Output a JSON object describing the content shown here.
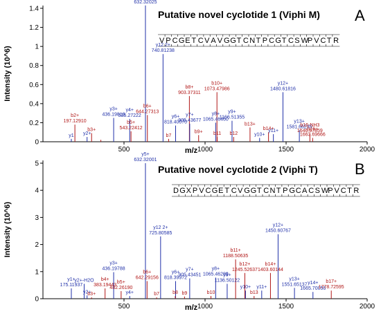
{
  "chart_data": [
    {
      "type": "bar",
      "panel_letter": "A",
      "title": "Putative novel cyclotide 1 (Viphi M)",
      "xlabel": "m/z",
      "ylabel": "Intensity (10^6)",
      "xlim": [
        0,
        2000
      ],
      "ylim": [
        0,
        1.4
      ],
      "xticks": [
        "500",
        "1000",
        "1500",
        "2000"
      ],
      "yticks": [
        "0",
        "0.2",
        "0.4",
        "0.6",
        "0.8",
        "1",
        "1.2",
        "1.4"
      ],
      "sequence": [
        "V",
        "P",
        "C",
        "G",
        "E",
        "T",
        "C",
        "V",
        "A",
        "V",
        "G",
        "G",
        "T",
        "C",
        "N",
        "T",
        "P",
        "C",
        "G",
        "T",
        "C",
        "S",
        "W",
        "P",
        "V",
        "C",
        "T",
        "R"
      ],
      "peaks": [
        {
          "ion": "y1",
          "mz": "",
          "x": 175.1,
          "y": 0.03,
          "series": "y",
          "show_label": true
        },
        {
          "ion": "b2+",
          "mz": "197.12910",
          "x": 197.1,
          "y": 0.18,
          "series": "b",
          "show_label": true
        },
        {
          "ion": "y2+",
          "mz": "",
          "x": 272.2,
          "y": 0.05,
          "series": "y",
          "show_label": true
        },
        {
          "ion": "b3+",
          "mz": "",
          "x": 300.1,
          "y": 0.09,
          "series": "b",
          "show_label": true
        },
        {
          "ion": "y3+",
          "mz": "436.19818",
          "x": 436.2,
          "y": 0.25,
          "series": "y",
          "show_label": true
        },
        {
          "ion": "b4+",
          "mz": "",
          "x": 357.2,
          "y": 0.02,
          "series": "b",
          "show_label": false
        },
        {
          "ion": "y4+",
          "mz": "535.27222",
          "x": 535.3,
          "y": 0.24,
          "series": "y",
          "show_label": true
        },
        {
          "ion": "b5+",
          "mz": "543.22412",
          "x": 543.2,
          "y": 0.11,
          "series": "b",
          "show_label": true
        },
        {
          "ion": "y5+",
          "mz": "632.32025",
          "x": 632.3,
          "y": 1.43,
          "series": "y",
          "show_label": true
        },
        {
          "ion": "b6+",
          "mz": "644.27313",
          "x": 644.3,
          "y": 0.28,
          "series": "b",
          "show_label": true
        },
        {
          "ion": "y12 2+",
          "mz": "740.81238",
          "x": 740.8,
          "y": 0.92,
          "series": "y",
          "show_label": true
        },
        {
          "ion": "y6+",
          "mz": "818.40070",
          "x": 818.4,
          "y": 0.17,
          "series": "y",
          "show_label": true
        },
        {
          "ion": "b7",
          "mz": "",
          "x": 775.3,
          "y": 0.03,
          "series": "b",
          "show_label": true
        },
        {
          "ion": "b8+",
          "mz": "903.37311",
          "x": 903.4,
          "y": 0.48,
          "series": "b",
          "show_label": true
        },
        {
          "ion": "y7+",
          "mz": "905.43677",
          "x": 905.4,
          "y": 0.19,
          "series": "y",
          "show_label": true
        },
        {
          "ion": "b9+",
          "mz": "",
          "x": 960.4,
          "y": 0.07,
          "series": "b",
          "show_label": true
        },
        {
          "ion": "b10+",
          "mz": "1073.47986",
          "x": 1073.5,
          "y": 0.52,
          "series": "b",
          "show_label": true
        },
        {
          "ion": "y8+",
          "mz": "1065.46460",
          "x": 1065.5,
          "y": 0.2,
          "series": "y",
          "show_label": true
        },
        {
          "ion": "b11",
          "mz": "",
          "x": 1075.1,
          "y": 0.05,
          "series": "b",
          "show_label": true
        },
        {
          "ion": "y9+",
          "mz": "1166.51355",
          "x": 1166.5,
          "y": 0.22,
          "series": "y",
          "show_label": true
        },
        {
          "ion": "b12",
          "mz": "",
          "x": 1176.5,
          "y": 0.05,
          "series": "b",
          "show_label": true
        },
        {
          "ion": "b13+",
          "mz": "",
          "x": 1277.5,
          "y": 0.15,
          "series": "b",
          "show_label": true
        },
        {
          "ion": "y10+",
          "mz": "",
          "x": 1336.6,
          "y": 0.04,
          "series": "y",
          "show_label": true
        },
        {
          "ion": "b14+",
          "mz": "",
          "x": 1391.6,
          "y": 0.1,
          "series": "b",
          "show_label": true
        },
        {
          "ion": "y11+",
          "mz": "",
          "x": 1421.6,
          "y": 0.08,
          "series": "y",
          "show_label": true
        },
        {
          "ion": "y12+",
          "mz": "1480.61816",
          "x": 1480.6,
          "y": 0.52,
          "series": "y",
          "show_label": true
        },
        {
          "ion": "y13+",
          "mz": "1581.66235",
          "x": 1581.7,
          "y": 0.12,
          "series": "y",
          "show_label": true
        },
        {
          "ion": "b16-NH3",
          "mz": "1646.67859",
          "x": 1646.7,
          "y": 0.08,
          "series": "b",
          "show_label": true
        },
        {
          "ion": "b16+",
          "mz": "1663.69666",
          "x": 1663.7,
          "y": 0.04,
          "series": "b",
          "show_label": true
        }
      ]
    },
    {
      "type": "bar",
      "panel_letter": "B",
      "title": "Putative novel cyclotide 2 (Viphi T)",
      "xlabel": "m/z",
      "ylabel": "Intensity (10^6)",
      "xlim": [
        0,
        2000
      ],
      "ylim": [
        0,
        5
      ],
      "xticks": [
        "500",
        "1000",
        "1500",
        "2000"
      ],
      "yticks": [
        "0",
        "1",
        "2",
        "3",
        "4",
        "5"
      ],
      "sequence": [
        "D",
        "G",
        "X",
        "P",
        "V",
        "C",
        "G",
        "E",
        "T",
        "C",
        "V",
        "G",
        "G",
        "T",
        "C",
        "N",
        "T",
        "P",
        "G",
        "C",
        "A",
        "C",
        "S",
        "W",
        "P",
        "V",
        "C",
        "T",
        "R"
      ],
      "peaks": [
        {
          "ion": "y1+",
          "mz": "175.11937",
          "x": 175.1,
          "y": 0.38,
          "series": "y",
          "show_label": true
        },
        {
          "ion": "y2+",
          "mz": "",
          "x": 272.2,
          "y": 0.12,
          "series": "y",
          "show_label": true
        },
        {
          "ion": "b3+",
          "mz": "",
          "x": 300.1,
          "y": 0.05,
          "series": "b",
          "show_label": true
        },
        {
          "ion": "y2+-H2O",
          "mz": "",
          "x": 254.2,
          "y": 0.55,
          "series": "y",
          "show_label": true
        },
        {
          "ion": "b4+",
          "mz": "383.19443",
          "x": 383.2,
          "y": 0.38,
          "series": "b",
          "show_label": true
        },
        {
          "ion": "y3+",
          "mz": "436.19788",
          "x": 436.2,
          "y": 0.98,
          "series": "y",
          "show_label": true
        },
        {
          "ion": "b5+",
          "mz": "482.26190",
          "x": 482.3,
          "y": 0.28,
          "series": "b",
          "show_label": true
        },
        {
          "ion": "y4+",
          "mz": "",
          "x": 535.3,
          "y": 0.1,
          "series": "y",
          "show_label": true
        },
        {
          "ion": "y5+",
          "mz": "632.32001",
          "x": 632.3,
          "y": 5.0,
          "series": "y",
          "show_label": true
        },
        {
          "ion": "b6+",
          "mz": "642.29156",
          "x": 642.3,
          "y": 0.65,
          "series": "b",
          "show_label": true
        },
        {
          "ion": "b7",
          "mz": "",
          "x": 701.3,
          "y": 0.05,
          "series": "b",
          "show_label": true
        },
        {
          "ion": "y12 2+",
          "mz": "725.80585",
          "x": 725.8,
          "y": 2.3,
          "series": "y",
          "show_label": true
        },
        {
          "ion": "y6+",
          "mz": "818.39972",
          "x": 818.4,
          "y": 0.65,
          "series": "y",
          "show_label": true
        },
        {
          "ion": "b8",
          "mz": "",
          "x": 816.3,
          "y": 0.1,
          "series": "b",
          "show_label": true
        },
        {
          "ion": "b9",
          "mz": "",
          "x": 873.4,
          "y": 0.08,
          "series": "b",
          "show_label": true
        },
        {
          "ion": "y7+",
          "mz": "905.43451",
          "x": 905.4,
          "y": 0.75,
          "series": "y",
          "show_label": true
        },
        {
          "ion": "y8+",
          "mz": "1065.46289",
          "x": 1065.5,
          "y": 0.78,
          "series": "y",
          "show_label": true
        },
        {
          "ion": "b10",
          "mz": "",
          "x": 1036.4,
          "y": 0.1,
          "series": "b",
          "show_label": true
        },
        {
          "ion": "b11+",
          "mz": "1188.50635",
          "x": 1188.5,
          "y": 1.45,
          "series": "b",
          "show_label": true
        },
        {
          "ion": "y9+",
          "mz": "1136.50122",
          "x": 1136.5,
          "y": 0.55,
          "series": "y",
          "show_label": true
        },
        {
          "ion": "b12+",
          "mz": "1245.52637",
          "x": 1245.5,
          "y": 0.95,
          "series": "b",
          "show_label": true
        },
        {
          "ion": "y10+",
          "mz": "",
          "x": 1249.5,
          "y": 0.3,
          "series": "y",
          "show_label": true
        },
        {
          "ion": "b13",
          "mz": "",
          "x": 1302.5,
          "y": 0.1,
          "series": "b",
          "show_label": true
        },
        {
          "ion": "b14+",
          "mz": "1403.60144",
          "x": 1403.6,
          "y": 0.95,
          "series": "b",
          "show_label": true
        },
        {
          "ion": "y11+",
          "mz": "",
          "x": 1349.6,
          "y": 0.3,
          "series": "y",
          "show_label": true
        },
        {
          "ion": "y12+",
          "mz": "1450.60767",
          "x": 1450.6,
          "y": 2.38,
          "series": "y",
          "show_label": true
        },
        {
          "ion": "y13+",
          "mz": "1551.65137",
          "x": 1551.7,
          "y": 0.4,
          "series": "y",
          "show_label": true
        },
        {
          "ion": "y14+",
          "mz": "1665.70056",
          "x": 1665.7,
          "y": 0.25,
          "series": "y",
          "show_label": true
        },
        {
          "ion": "b17+",
          "mz": "1778.72595",
          "x": 1778.7,
          "y": 0.3,
          "series": "b",
          "show_label": true
        }
      ]
    }
  ],
  "colors": {
    "y_series": "#1f2fa8",
    "b_series": "#b01515",
    "axis": "#000000"
  }
}
